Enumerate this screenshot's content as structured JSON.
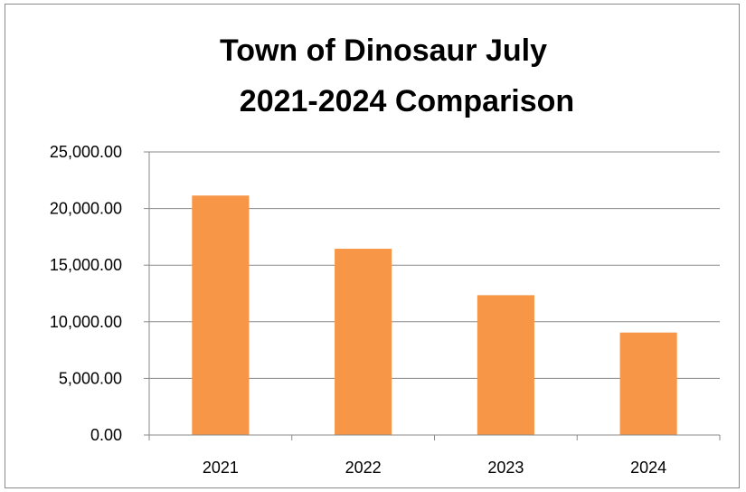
{
  "chart_data": {
    "type": "bar",
    "title_lines": [
      "Town of Dinosaur July",
      "2021-2024 Comparison"
    ],
    "categories": [
      "2021",
      "2022",
      "2023",
      "2024"
    ],
    "values": [
      21150,
      16450,
      12350,
      9050
    ],
    "ylim": [
      0,
      25000
    ],
    "yticks": [
      0,
      5000,
      10000,
      15000,
      20000,
      25000
    ],
    "ytick_labels": [
      "0.00",
      "5,000.00",
      "10,000.00",
      "15,000.00",
      "20,000.00",
      "25,000.00"
    ],
    "bar_color": "#f79646",
    "grid": true,
    "legend": "none"
  }
}
